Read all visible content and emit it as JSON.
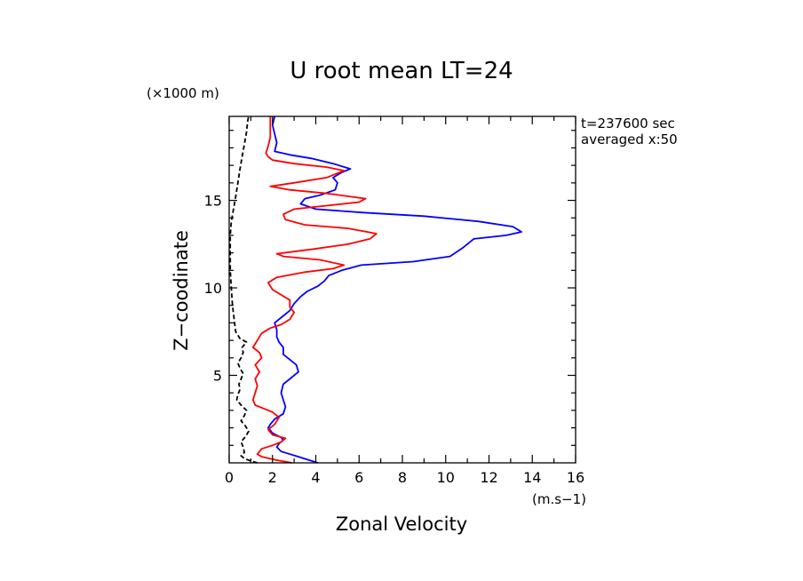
{
  "chart_data": {
    "type": "line",
    "title": "U root mean LT=24",
    "xlabel": "Zonal Velocity",
    "ylabel": "Z−coodinate",
    "x_unit": "(m.s−1)",
    "y_unit": "(×1000 m)",
    "xlim": [
      0,
      16
    ],
    "ylim": [
      0,
      19.8
    ],
    "x_ticks": [
      0,
      2,
      4,
      6,
      8,
      10,
      12,
      14,
      16
    ],
    "x_tick_labels": [
      "0",
      "2",
      "4",
      "6",
      "8",
      "10",
      "12",
      "14",
      "16"
    ],
    "y_ticks": [
      5,
      10,
      15
    ],
    "y_tick_labels": [
      "5",
      "10",
      "15"
    ],
    "annotations": [
      "t=237600 sec",
      "averaged  x:50"
    ],
    "grid": false,
    "legend": "none",
    "series": [
      {
        "color": "#0000ff",
        "dash": "solid",
        "points": [
          [
            4.1,
            0.0
          ],
          [
            3.7,
            0.15
          ],
          [
            3.2,
            0.35
          ],
          [
            2.8,
            0.5
          ],
          [
            2.4,
            0.65
          ],
          [
            2.2,
            0.9
          ],
          [
            2.3,
            1.1
          ],
          [
            2.5,
            1.3
          ],
          [
            2.4,
            1.45
          ],
          [
            2.0,
            1.7
          ],
          [
            1.8,
            2.0
          ],
          [
            1.9,
            2.2
          ],
          [
            2.1,
            2.5
          ],
          [
            2.5,
            2.8
          ],
          [
            2.6,
            3.2
          ],
          [
            2.5,
            3.6
          ],
          [
            2.4,
            4.0
          ],
          [
            2.5,
            4.5
          ],
          [
            2.8,
            4.8
          ],
          [
            3.2,
            5.2
          ],
          [
            3.1,
            5.6
          ],
          [
            2.8,
            5.9
          ],
          [
            2.5,
            6.2
          ],
          [
            2.5,
            6.6
          ],
          [
            2.3,
            6.9
          ],
          [
            2.2,
            7.2
          ],
          [
            2.2,
            7.6
          ],
          [
            2.1,
            8.0
          ],
          [
            2.4,
            8.3
          ],
          [
            2.8,
            8.7
          ],
          [
            3.0,
            9.1
          ],
          [
            3.3,
            9.5
          ],
          [
            3.6,
            9.8
          ],
          [
            4.1,
            10.1
          ],
          [
            4.4,
            10.4
          ],
          [
            4.6,
            10.7
          ],
          [
            5.2,
            11.0
          ],
          [
            6.1,
            11.3
          ],
          [
            8.5,
            11.5
          ],
          [
            10.2,
            11.8
          ],
          [
            10.8,
            12.3
          ],
          [
            11.3,
            12.8
          ],
          [
            12.8,
            13.0
          ],
          [
            13.5,
            13.2
          ],
          [
            13.1,
            13.5
          ],
          [
            11.5,
            13.8
          ],
          [
            9.0,
            14.1
          ],
          [
            6.2,
            14.3
          ],
          [
            4.0,
            14.5
          ],
          [
            3.3,
            14.8
          ],
          [
            3.5,
            15.1
          ],
          [
            4.2,
            15.3
          ],
          [
            4.9,
            15.6
          ],
          [
            5.0,
            16.0
          ],
          [
            4.8,
            16.3
          ],
          [
            5.2,
            16.6
          ],
          [
            5.6,
            16.8
          ],
          [
            4.8,
            17.1
          ],
          [
            3.8,
            17.4
          ],
          [
            2.8,
            17.6
          ],
          [
            2.1,
            17.8
          ],
          [
            2.2,
            18.3
          ],
          [
            2.1,
            18.8
          ],
          [
            2.0,
            19.3
          ],
          [
            2.1,
            19.8
          ]
        ]
      },
      {
        "color": "#ff0000",
        "dash": "solid",
        "points": [
          [
            2.9,
            0.0
          ],
          [
            2.2,
            0.15
          ],
          [
            1.5,
            0.35
          ],
          [
            1.3,
            0.5
          ],
          [
            1.5,
            0.8
          ],
          [
            2.0,
            1.0
          ],
          [
            2.4,
            1.2
          ],
          [
            2.6,
            1.4
          ],
          [
            2.0,
            1.6
          ],
          [
            1.8,
            1.9
          ],
          [
            2.1,
            2.2
          ],
          [
            2.3,
            2.6
          ],
          [
            2.0,
            2.9
          ],
          [
            1.6,
            3.1
          ],
          [
            1.2,
            3.3
          ],
          [
            1.1,
            3.6
          ],
          [
            1.2,
            4.0
          ],
          [
            1.3,
            4.4
          ],
          [
            1.2,
            4.8
          ],
          [
            1.4,
            5.2
          ],
          [
            1.2,
            5.6
          ],
          [
            1.5,
            6.0
          ],
          [
            1.4,
            6.3
          ],
          [
            1.1,
            6.6
          ],
          [
            1.3,
            7.0
          ],
          [
            1.5,
            7.4
          ],
          [
            1.9,
            7.7
          ],
          [
            2.4,
            7.9
          ],
          [
            2.8,
            8.2
          ],
          [
            3.0,
            8.6
          ],
          [
            2.8,
            8.9
          ],
          [
            2.8,
            9.3
          ],
          [
            2.4,
            9.6
          ],
          [
            2.0,
            9.9
          ],
          [
            1.8,
            10.3
          ],
          [
            2.2,
            10.6
          ],
          [
            3.5,
            10.9
          ],
          [
            4.8,
            11.1
          ],
          [
            5.3,
            11.3
          ],
          [
            4.2,
            11.6
          ],
          [
            2.5,
            11.8
          ],
          [
            2.2,
            11.95
          ],
          [
            3.8,
            12.2
          ],
          [
            5.5,
            12.5
          ],
          [
            6.5,
            12.8
          ],
          [
            6.8,
            13.1
          ],
          [
            5.5,
            13.4
          ],
          [
            3.5,
            13.6
          ],
          [
            2.6,
            13.9
          ],
          [
            2.5,
            14.2
          ],
          [
            3.0,
            14.5
          ],
          [
            4.5,
            14.7
          ],
          [
            6.0,
            14.9
          ],
          [
            6.3,
            15.1
          ],
          [
            4.5,
            15.4
          ],
          [
            2.8,
            15.6
          ],
          [
            1.9,
            15.8
          ],
          [
            3.0,
            16.0
          ],
          [
            4.5,
            16.3
          ],
          [
            5.3,
            16.7
          ],
          [
            4.5,
            16.9
          ],
          [
            3.0,
            17.1
          ],
          [
            2.0,
            17.3
          ],
          [
            1.8,
            17.5
          ],
          [
            1.7,
            17.7
          ],
          [
            1.8,
            18.1
          ],
          [
            1.9,
            18.6
          ],
          [
            1.9,
            19.2
          ],
          [
            1.9,
            19.8
          ]
        ]
      },
      {
        "color": "#000000",
        "dash": "dashed",
        "points": [
          [
            1.3,
            0.0
          ],
          [
            1.0,
            0.1
          ],
          [
            0.7,
            0.25
          ],
          [
            0.55,
            0.4
          ],
          [
            0.7,
            0.6
          ],
          [
            0.65,
            0.9
          ],
          [
            0.55,
            1.2
          ],
          [
            0.75,
            1.5
          ],
          [
            0.9,
            1.8
          ],
          [
            0.75,
            2.1
          ],
          [
            0.55,
            2.4
          ],
          [
            0.7,
            2.7
          ],
          [
            0.8,
            3.0
          ],
          [
            0.55,
            3.3
          ],
          [
            0.35,
            3.6
          ],
          [
            0.4,
            3.9
          ],
          [
            0.5,
            4.2
          ],
          [
            0.45,
            4.5
          ],
          [
            0.55,
            4.8
          ],
          [
            0.65,
            5.1
          ],
          [
            0.5,
            5.4
          ],
          [
            0.4,
            5.7
          ],
          [
            0.55,
            6.0
          ],
          [
            0.65,
            6.3
          ],
          [
            0.6,
            6.6
          ],
          [
            0.8,
            6.9
          ],
          [
            0.5,
            7.1
          ],
          [
            0.3,
            7.5
          ],
          [
            0.25,
            8.0
          ],
          [
            0.2,
            8.5
          ],
          [
            0.15,
            9.0
          ],
          [
            0.1,
            10.0
          ],
          [
            0.05,
            11.0
          ],
          [
            0.05,
            12.0
          ],
          [
            0.05,
            13.0
          ],
          [
            0.1,
            13.8
          ],
          [
            0.2,
            14.5
          ],
          [
            0.3,
            15.2
          ],
          [
            0.4,
            16.0
          ],
          [
            0.5,
            16.8
          ],
          [
            0.6,
            17.5
          ],
          [
            0.7,
            18.2
          ],
          [
            0.8,
            18.9
          ],
          [
            0.85,
            19.5
          ],
          [
            0.9,
            19.8
          ]
        ]
      }
    ]
  }
}
